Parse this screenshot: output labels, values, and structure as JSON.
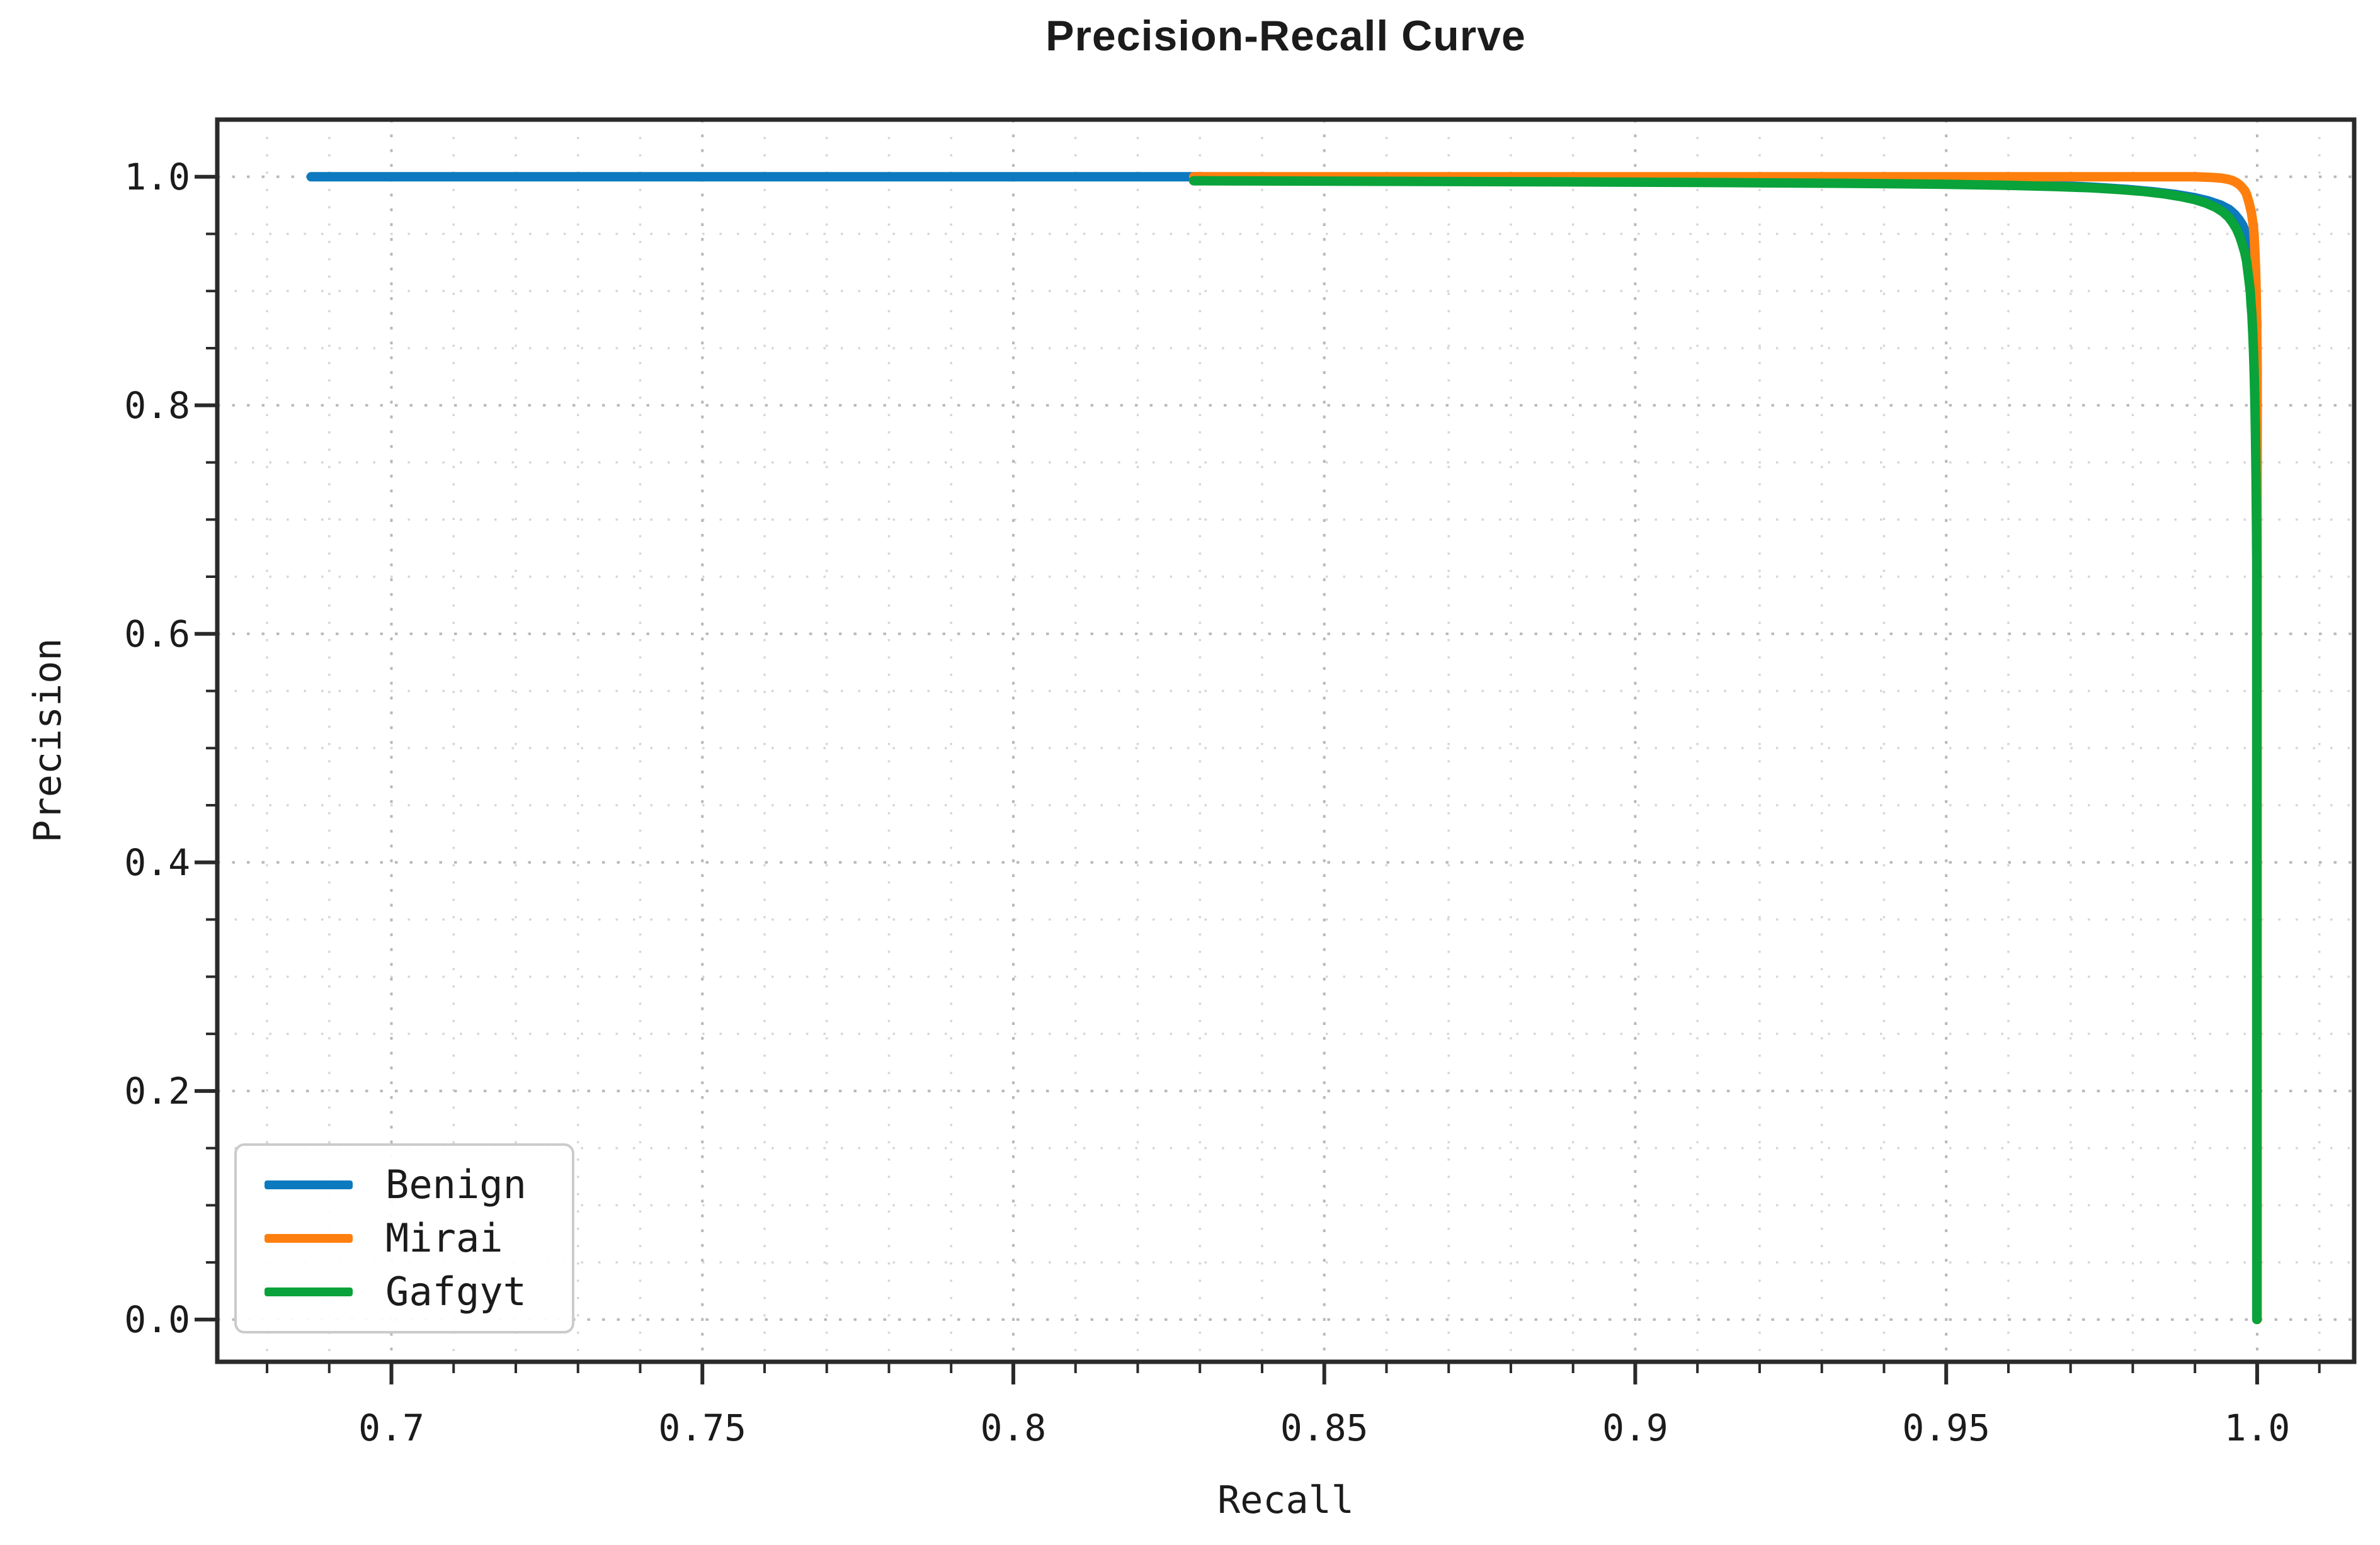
{
  "chart_data": {
    "type": "line",
    "title": "Precision-Recall Curve",
    "xlabel": "Recall",
    "ylabel": "Precision",
    "xlim": [
      0.672,
      1.0156
    ],
    "ylim": [
      -0.037,
      1.05
    ],
    "grid": true,
    "grid_style": "dotted",
    "legend_position": "lower left",
    "x_major_ticks": [
      0.7,
      0.75,
      0.8,
      0.85,
      0.9,
      0.95,
      1.0
    ],
    "x_tick_labels": [
      "0.7",
      "0.75",
      "0.8",
      "0.85",
      "0.9",
      "0.95",
      "1.0"
    ],
    "x_minor_step": 0.01,
    "y_major_ticks": [
      0.0,
      0.2,
      0.4,
      0.6,
      0.8,
      1.0
    ],
    "y_tick_labels": [
      "0.0",
      "0.2",
      "0.4",
      "0.6",
      "0.8",
      "1.0"
    ],
    "y_minor_step": 0.05,
    "series": [
      {
        "name": "Benign",
        "color": "#0d79bf",
        "points": [
          [
            0.6871,
            1.0
          ],
          [
            0.75,
            1.0
          ],
          [
            0.829,
            1.0
          ],
          [
            0.86,
            0.9986
          ],
          [
            0.9,
            0.9973
          ],
          [
            0.93,
            0.996
          ],
          [
            0.95,
            0.9948
          ],
          [
            0.96,
            0.9937
          ],
          [
            0.968,
            0.9923
          ],
          [
            0.974,
            0.9908
          ],
          [
            0.979,
            0.989
          ],
          [
            0.9832,
            0.9869
          ],
          [
            0.9868,
            0.9846
          ],
          [
            0.9898,
            0.9819
          ],
          [
            0.9922,
            0.9788
          ],
          [
            0.9941,
            0.9753
          ],
          [
            0.9955,
            0.9714
          ],
          [
            0.9964,
            0.9671
          ],
          [
            0.9971,
            0.9624
          ],
          [
            0.9977,
            0.9573
          ],
          [
            0.9981,
            0.9519
          ],
          [
            0.9985,
            0.9461
          ],
          [
            0.9988,
            0.94
          ],
          [
            0.999,
            0.9337
          ],
          [
            0.9992,
            0.9272
          ],
          [
            0.9993,
            0.9205
          ],
          [
            0.9995,
            0.9136
          ],
          [
            0.9996,
            0.9064
          ],
          [
            0.9997,
            0.8991
          ],
          [
            0.9998,
            0.8917
          ],
          [
            0.99985,
            0.8841
          ],
          [
            0.9999,
            0.8765
          ],
          [
            0.99995,
            0.869
          ]
        ]
      },
      {
        "name": "Mirai",
        "color": "#ff7f0e",
        "points": [
          [
            0.829,
            1.0
          ],
          [
            0.9,
            1.0
          ],
          [
            0.99,
            1.0
          ],
          [
            0.9925,
            0.9995
          ],
          [
            0.9942,
            0.9988
          ],
          [
            0.9953,
            0.9978
          ],
          [
            0.9961,
            0.9965
          ],
          [
            0.9967,
            0.9948
          ],
          [
            0.9972,
            0.9928
          ],
          [
            0.9976,
            0.9905
          ],
          [
            0.998,
            0.9878
          ],
          [
            0.9983,
            0.9846
          ],
          [
            0.9985,
            0.9811
          ],
          [
            0.9987,
            0.9772
          ],
          [
            0.9989,
            0.9727
          ],
          [
            0.9991,
            0.9677
          ],
          [
            0.99925,
            0.9621
          ],
          [
            0.9994,
            0.956
          ],
          [
            0.9995,
            0.9495
          ],
          [
            0.99957,
            0.9426
          ],
          [
            0.99963,
            0.9352
          ],
          [
            0.99969,
            0.9274
          ],
          [
            0.99974,
            0.9191
          ],
          [
            0.99979,
            0.9103
          ],
          [
            0.99983,
            0.9011
          ],
          [
            0.99986,
            0.8915
          ],
          [
            0.99989,
            0.8817
          ],
          [
            0.99992,
            0.8717
          ],
          [
            0.99994,
            0.8617
          ],
          [
            0.99996,
            0.8518
          ],
          [
            0.99998,
            0.8421
          ],
          [
            1.0,
            0.8328
          ],
          [
            1.0,
            0.0
          ]
        ]
      },
      {
        "name": "Gafgyt",
        "color": "#0aa23a",
        "points": [
          [
            0.829,
            0.9965
          ],
          [
            0.86,
            0.996
          ],
          [
            0.89,
            0.9955
          ],
          [
            0.915,
            0.9949
          ],
          [
            0.935,
            0.9942
          ],
          [
            0.95,
            0.9934
          ],
          [
            0.96,
            0.9925
          ],
          [
            0.9675,
            0.9915
          ],
          [
            0.9735,
            0.9903
          ],
          [
            0.978,
            0.9888
          ],
          [
            0.9818,
            0.9871
          ],
          [
            0.985,
            0.9851
          ],
          [
            0.9877,
            0.9827
          ],
          [
            0.99,
            0.98
          ],
          [
            0.9918,
            0.9769
          ],
          [
            0.9933,
            0.9733
          ],
          [
            0.9945,
            0.9692
          ],
          [
            0.9954,
            0.9647
          ],
          [
            0.9961,
            0.9596
          ],
          [
            0.9967,
            0.954
          ],
          [
            0.9972,
            0.9478
          ],
          [
            0.9976,
            0.9411
          ],
          [
            0.998,
            0.9338
          ],
          [
            0.9983,
            0.926
          ],
          [
            0.9985,
            0.9176
          ],
          [
            0.9987,
            0.9088
          ],
          [
            0.9989,
            0.8994
          ],
          [
            0.999,
            0.8896
          ],
          [
            0.99915,
            0.8793
          ],
          [
            0.99925,
            0.8687
          ],
          [
            0.99934,
            0.8576
          ],
          [
            0.99942,
            0.8462
          ],
          [
            0.99949,
            0.8345
          ],
          [
            0.99955,
            0.8226
          ],
          [
            0.9996,
            0.8104
          ],
          [
            0.99965,
            0.798
          ],
          [
            0.99969,
            0.7855
          ],
          [
            0.99973,
            0.7729
          ],
          [
            0.99976,
            0.7602
          ],
          [
            0.99979,
            0.7475
          ],
          [
            0.99982,
            0.7349
          ],
          [
            0.99984,
            0.7224
          ],
          [
            0.99986,
            0.71
          ],
          [
            0.99988,
            0.6978
          ],
          [
            0.9999,
            0.6859
          ],
          [
            0.99991,
            0.6743
          ],
          [
            0.99993,
            0.663
          ],
          [
            0.99994,
            0.0
          ]
        ]
      }
    ]
  },
  "colors": {
    "background": "#ffffff",
    "spine": "#2a2a2a",
    "tick": "#2a2a2a",
    "grid_major": "#b8b8b8",
    "grid_minor": "#d6d6d6",
    "text": "#1b1b1b",
    "legend_border": "#cbcbcb"
  }
}
